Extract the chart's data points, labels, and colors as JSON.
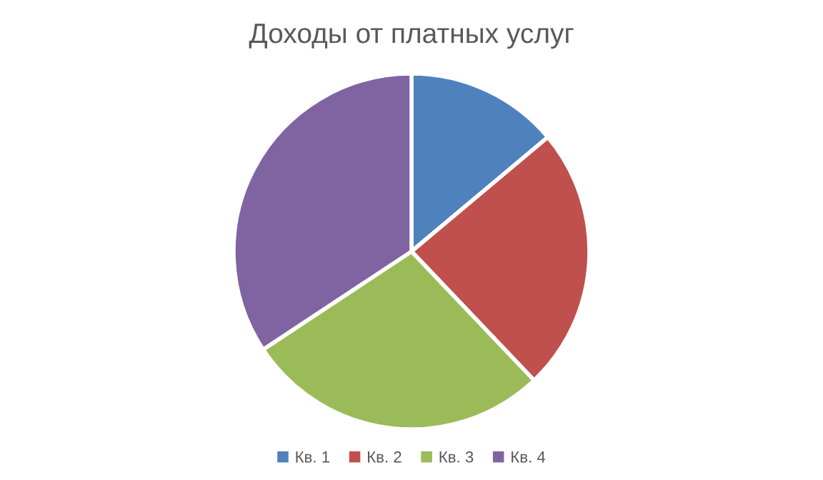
{
  "chart_data": {
    "type": "pie",
    "title": "Доходы от платных услуг",
    "categories": [
      "Кв. 1",
      "Кв. 2",
      "Кв. 3",
      "Кв. 4"
    ],
    "values": [
      13.9,
      24.0,
      27.8,
      34.3
    ],
    "colors": [
      "#4f81bd",
      "#c0504d",
      "#9bbb59",
      "#8064a2"
    ],
    "legend": "bottom"
  }
}
